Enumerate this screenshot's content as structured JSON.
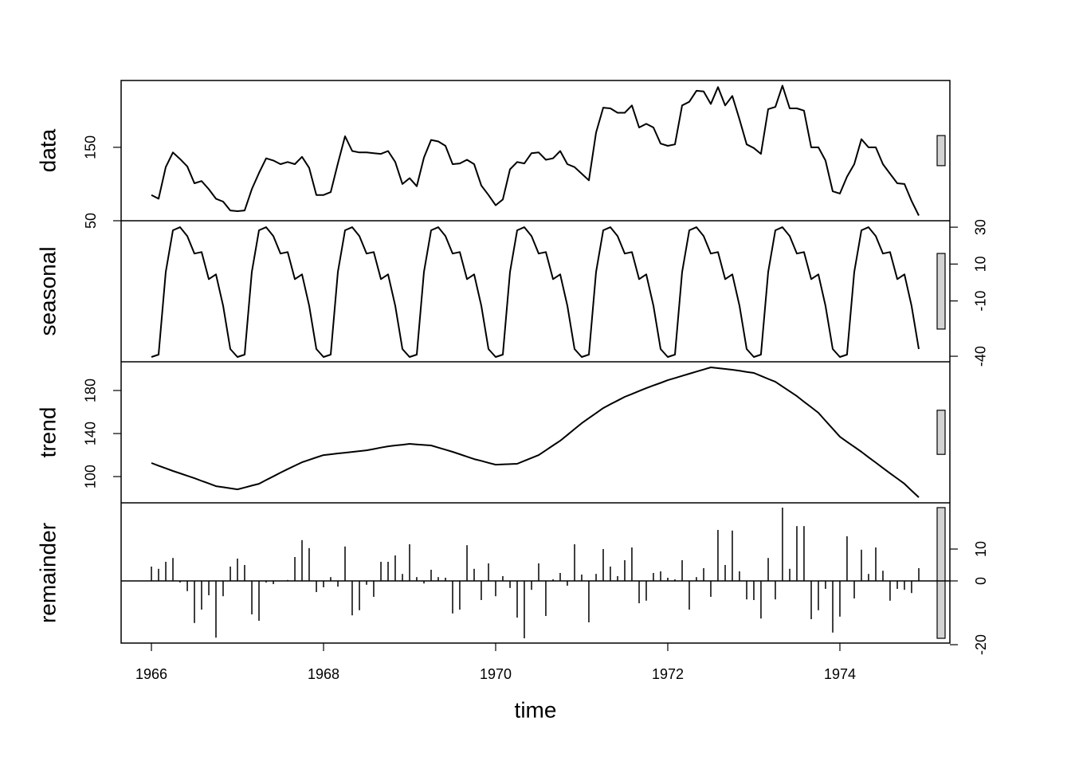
{
  "chart_data": {
    "type": "stl",
    "xlabel": "time",
    "xlim": [
      1965.648,
      1975.278
    ],
    "xticks": [
      1966,
      1968,
      1970,
      1972,
      1974
    ],
    "x": [
      1966,
      1966.083,
      1966.167,
      1966.25,
      1966.333,
      1966.417,
      1966.5,
      1966.583,
      1966.667,
      1966.75,
      1966.833,
      1966.917,
      1967,
      1967.083,
      1967.167,
      1967.25,
      1967.333,
      1967.417,
      1967.5,
      1967.583,
      1967.667,
      1967.75,
      1967.833,
      1967.917,
      1968,
      1968.083,
      1968.167,
      1968.25,
      1968.333,
      1968.417,
      1968.5,
      1968.583,
      1968.667,
      1968.75,
      1968.833,
      1968.917,
      1969,
      1969.083,
      1969.167,
      1969.25,
      1969.333,
      1969.417,
      1969.5,
      1969.583,
      1969.667,
      1969.75,
      1969.833,
      1969.917,
      1970,
      1970.083,
      1970.167,
      1970.25,
      1970.333,
      1970.417,
      1970.5,
      1970.583,
      1970.667,
      1970.75,
      1970.833,
      1970.917,
      1971,
      1971.083,
      1971.167,
      1971.25,
      1971.333,
      1971.417,
      1971.5,
      1971.583,
      1971.667,
      1971.75,
      1971.833,
      1971.917,
      1972,
      1972.083,
      1972.167,
      1972.25,
      1972.333,
      1972.417,
      1972.5,
      1972.583,
      1972.667,
      1972.75,
      1972.833,
      1972.917,
      1973,
      1973.083,
      1973.167,
      1973.25,
      1973.333,
      1973.417,
      1973.5,
      1973.583,
      1973.667,
      1973.75,
      1973.833,
      1973.917,
      1974,
      1974.083,
      1974.167,
      1974.25,
      1974.333,
      1974.417,
      1974.5,
      1974.583,
      1974.667,
      1974.75,
      1974.833,
      1974.917
    ],
    "panels": [
      {
        "type": "line",
        "ylabel": "data",
        "axis": "left",
        "color": "#000000",
        "ylim": [
          50,
          241
        ],
        "yticks": [
          50,
          150
        ],
        "values": [
          85,
          80,
          123,
          143,
          134,
          124,
          101,
          104,
          93,
          80,
          76,
          64,
          63,
          64,
          93,
          115,
          135,
          132,
          127,
          130,
          127,
          137,
          122,
          85,
          85,
          89,
          128,
          165,
          145,
          143,
          143,
          142,
          141,
          145,
          130,
          100,
          108,
          97,
          136,
          160,
          158,
          152,
          127,
          128,
          133,
          127,
          98,
          85,
          71,
          79,
          120,
          130,
          128,
          142,
          143,
          133,
          135,
          145,
          127,
          123,
          114,
          105,
          170,
          204,
          203,
          197,
          197,
          207,
          177,
          182,
          177,
          155,
          152,
          154,
          207,
          212,
          227,
          226,
          209,
          232,
          207,
          220,
          188,
          154,
          149,
          141,
          202,
          205,
          234,
          203,
          203,
          200,
          150,
          150,
          132,
          90,
          87,
          110,
          127,
          161,
          150,
          150,
          127,
          114,
          101,
          100,
          77,
          57
        ]
      },
      {
        "type": "line",
        "ylabel": "seasonal",
        "axis": "right",
        "color": "#000000",
        "ylim": [
          -43,
          33.5
        ],
        "yticks": [
          -40,
          -10,
          10,
          30
        ],
        "values": [
          -40.4,
          -39.1,
          5.7,
          28.3,
          30,
          25.2,
          15.7,
          16.5,
          1.8,
          4.4,
          -12.6,
          -36.1,
          -40.4,
          -39.1,
          5.7,
          28.3,
          30,
          25.2,
          15.7,
          16.5,
          1.8,
          4.4,
          -12.6,
          -36.1,
          -40.4,
          -39.1,
          5.7,
          28.3,
          30,
          25.2,
          15.7,
          16.5,
          1.8,
          4.4,
          -12.6,
          -36.1,
          -40.4,
          -39.1,
          5.7,
          28.3,
          30,
          25.2,
          15.7,
          16.5,
          1.8,
          4.4,
          -12.6,
          -36.1,
          -40.4,
          -39.1,
          5.7,
          28.3,
          30,
          25.2,
          15.7,
          16.5,
          1.8,
          4.4,
          -12.6,
          -36.1,
          -40.4,
          -39.1,
          5.7,
          28.3,
          30,
          25.2,
          15.7,
          16.5,
          1.8,
          4.4,
          -12.6,
          -36.1,
          -40.4,
          -39.1,
          5.7,
          28.3,
          30,
          25.2,
          15.7,
          16.5,
          1.8,
          4.4,
          -12.6,
          -36.1,
          -40.4,
          -39.1,
          5.7,
          28.3,
          30,
          25.2,
          15.7,
          16.5,
          1.8,
          4.4,
          -12.6,
          -36.1,
          -40.4,
          -39.1,
          5.7,
          28.3,
          30,
          25.2,
          15.7,
          16.5,
          1.8,
          4.4,
          -12.6,
          -36.1
        ]
      },
      {
        "type": "line",
        "ylabel": "trend",
        "axis": "left",
        "color": "#000000",
        "ylim": [
          75.6,
          206.7
        ],
        "yticks": [
          100,
          140,
          180
        ],
        "values": [
          112.6,
          110.1,
          107.7,
          105.2,
          103.0,
          100.7,
          98.5,
          96.0,
          93.6,
          91.1,
          90.1,
          89.1,
          88.1,
          89.8,
          91.6,
          93.3,
          96.8,
          100.2,
          103.7,
          106.9,
          110.1,
          113.3,
          115.5,
          117.8,
          120,
          120.7,
          121.5,
          122.2,
          122.9,
          123.7,
          124.4,
          125.6,
          126.9,
          128.1,
          128.9,
          129.6,
          130.4,
          129.9,
          129.4,
          128.9,
          126.9,
          125.0,
          123,
          120.8,
          118.5,
          116.3,
          114.6,
          112.8,
          111.1,
          111.4,
          111.6,
          111.9,
          114.6,
          117.3,
          120,
          124.4,
          128.9,
          133.3,
          138.7,
          144.2,
          149.6,
          154.3,
          159.0,
          163.7,
          167.2,
          170.6,
          174.1,
          176.8,
          179.5,
          182.2,
          184.7,
          187.1,
          189.6,
          191.6,
          193.6,
          195.6,
          197.6,
          199.5,
          201.5,
          200.8,
          200.0,
          199.3,
          198.3,
          197.3,
          196.3,
          193.6,
          190.8,
          188.1,
          183.7,
          179.2,
          174.8,
          169.6,
          164.5,
          159.3,
          151.9,
          144.4,
          137,
          132.3,
          127.7,
          123,
          118.0,
          113.0,
          108,
          103.1,
          98.2,
          93.3,
          87.0,
          80.7
        ]
      },
      {
        "type": "bar",
        "ylabel": "remainder",
        "axis": "right",
        "color": "#000000",
        "ylim": [
          -19.5,
          24.5
        ],
        "yticks": [
          -20,
          0,
          10
        ],
        "values": [
          4.5,
          3.8,
          6,
          7.2,
          -0.5,
          -3.2,
          -13.2,
          -9,
          -4.5,
          -17.8,
          -4.8,
          4.5,
          7,
          5,
          -10.5,
          -12.5,
          -0.5,
          -1,
          0.1,
          0.3,
          7.5,
          12.8,
          10.3,
          -3.5,
          -2,
          1.2,
          -1.8,
          10.8,
          -10.8,
          -9.2,
          -1.2,
          -5,
          6,
          6,
          8,
          2.2,
          11.5,
          1.2,
          -0.8,
          3.5,
          1.2,
          1,
          -10.2,
          -9,
          11.2,
          3.8,
          -6,
          5.5,
          -4.8,
          1.5,
          -2.2,
          -11.5,
          -18,
          -2.8,
          5.5,
          -11,
          0.5,
          2.5,
          -1.5,
          11.5,
          2,
          -13,
          2.2,
          10,
          4.5,
          1.5,
          6.5,
          10.5,
          -7,
          -6.2,
          2.5,
          3,
          1,
          0.5,
          6.5,
          -9,
          1.2,
          4,
          -5,
          16,
          5,
          15.8,
          3,
          -5.8,
          -6,
          -11.8,
          7.2,
          -5.8,
          23,
          3.8,
          17.2,
          17.2,
          -12,
          -9.2,
          -2.5,
          -16.2,
          -11.2,
          14,
          -5.5,
          9.8,
          2.2,
          10.5,
          3.2,
          -6.2,
          -2.5,
          -2.8,
          -3.8,
          4
        ]
      }
    ]
  }
}
